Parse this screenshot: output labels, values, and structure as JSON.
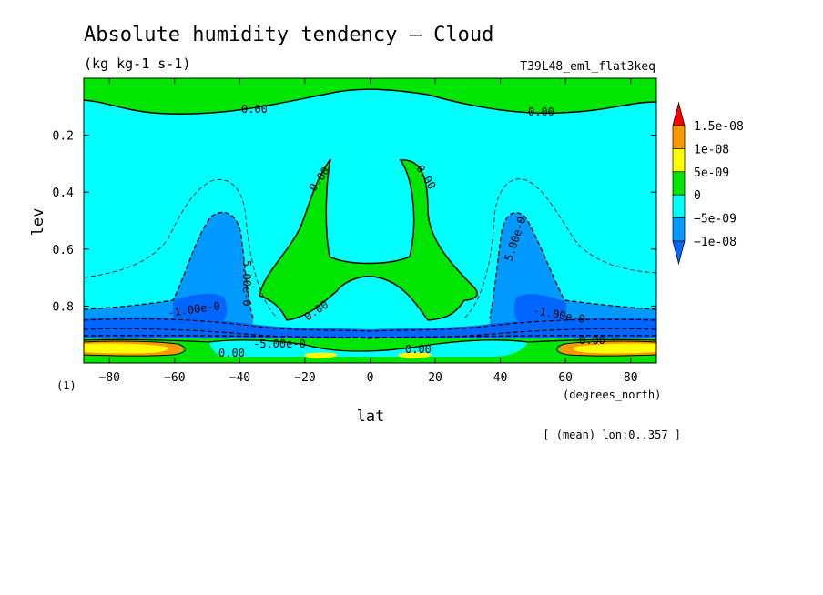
{
  "header": {
    "title": "Absolute humidity tendency — Cloud",
    "units": "(kg kg-1 s-1)",
    "run_name": "T39L48_eml_flat3keq"
  },
  "footer": {
    "mean_note": "[ (mean) lon:0..357 ]",
    "lev_unit": "(1)",
    "lat_unit": "(degrees_north)"
  },
  "chart_data": {
    "type": "heatmap",
    "subtype": "filled-contour",
    "title": "Absolute humidity tendency — Cloud",
    "xlabel": "lat",
    "ylabel": "lev",
    "xlim": [
      -87.9,
      87.9
    ],
    "ylim": [
      1.0,
      0.0
    ],
    "y_inverted": true,
    "x_ticks": [
      -80,
      -60,
      -40,
      -20,
      0,
      20,
      40,
      60,
      80
    ],
    "y_ticks": [
      0.2,
      0.4,
      0.6,
      0.8
    ],
    "grid": false,
    "legend": "right",
    "colorbar": {
      "labels": [
        "1.5e-08",
        "1e-08",
        "5e-09",
        "0",
        "-5e-09",
        "-1e-08"
      ],
      "levels": [
        -1e-08,
        -5e-09,
        0,
        5e-09,
        1e-08,
        1.5e-08
      ],
      "colors": [
        "#ff0000",
        "#ff9900",
        "#ffff00",
        "#00e600",
        "#00ffff",
        "#0099ff",
        "#0066ff"
      ]
    },
    "contour_labels": [
      "0.00",
      "0.00",
      "0.00",
      "0.00",
      "0.00",
      "0.00",
      "-1.00e-0",
      "-1.00e-0",
      "5.00e-0",
      "5.00e-0",
      "-5.00e-0",
      "0.00",
      "0.00"
    ],
    "regions": [
      {
        "name": "upper-zero-band",
        "value": 0,
        "lat": [
          -87.9,
          87.9
        ],
        "lev": [
          0.0,
          0.08
        ]
      },
      {
        "name": "broad-negative-field",
        "value": -2.5e-09,
        "lat": [
          -87.9,
          87.9
        ],
        "lev": [
          0.08,
          0.9
        ]
      },
      {
        "name": "tropical-positive-arms",
        "value": 2.5e-09,
        "lat": [
          -30,
          35
        ],
        "lev": [
          0.29,
          0.86
        ]
      },
      {
        "name": "south-subtropical-min",
        "value": -7.5e-09,
        "lat": [
          -52,
          -42
        ],
        "lev": [
          0.45,
          0.9
        ]
      },
      {
        "name": "north-subtropical-min",
        "value": -7.5e-09,
        "lat": [
          42,
          52
        ],
        "lev": [
          0.45,
          0.9
        ]
      },
      {
        "name": "boundary-layer-min",
        "value": -1.2e-08,
        "lat": [
          -87.9,
          87.9
        ],
        "lev": [
          0.86,
          0.93
        ]
      },
      {
        "name": "south-polar-surface-max",
        "value": 1.2e-08,
        "lat": [
          -85,
          -65
        ],
        "lev": [
          0.93,
          0.96
        ]
      },
      {
        "name": "north-polar-surface-max",
        "value": 1.2e-08,
        "lat": [
          63,
          87
        ],
        "lev": [
          0.93,
          0.96
        ]
      }
    ]
  }
}
